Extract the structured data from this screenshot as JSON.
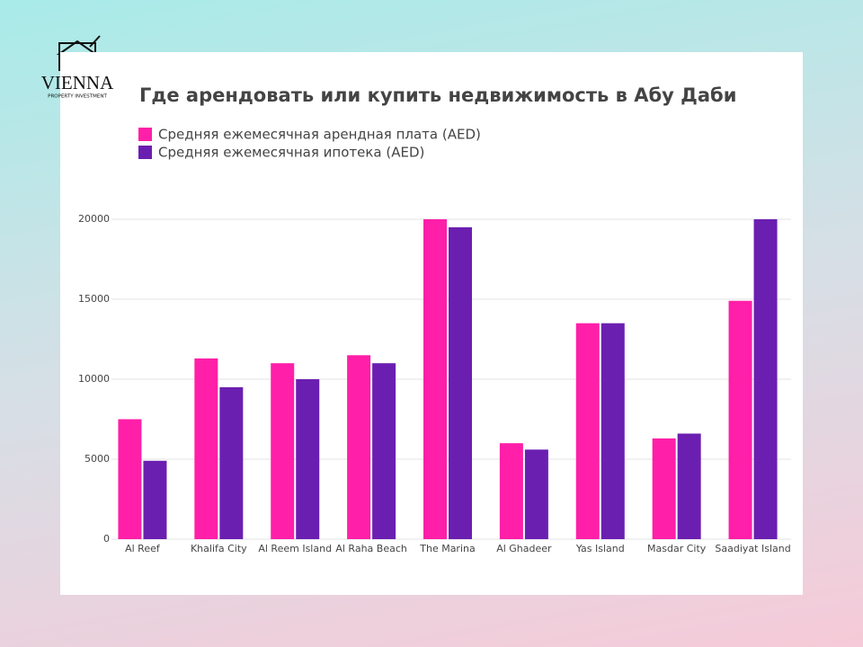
{
  "logo": {
    "name": "VIENNA",
    "tagline": "PROPERTY INVESTMENT"
  },
  "chart_data": {
    "type": "bar",
    "title": "Где арендовать или купить недвижимость в Абу Даби",
    "categories": [
      "Al Reef",
      "Khalifa City",
      "Al Reem Island",
      "Al Raha Beach",
      "The Marina",
      "Al Ghadeer",
      "Yas Island",
      "Masdar City",
      "Saadiyat Island"
    ],
    "series": [
      {
        "name": "Средняя ежемесячная арендная плата (AED)",
        "color": "#ff1fa8",
        "values": [
          7500,
          11300,
          11000,
          11500,
          20000,
          6000,
          13500,
          6300,
          14900
        ]
      },
      {
        "name": "Средняя ежемесячная ипотека (AED)",
        "color": "#6b1fb1",
        "values": [
          4900,
          9500,
          10000,
          11000,
          19500,
          5600,
          13500,
          6600,
          20000
        ]
      }
    ],
    "ylim": [
      0,
      20000
    ],
    "yticks": [
      0,
      5000,
      10000,
      15000,
      20000
    ],
    "grid": true
  }
}
